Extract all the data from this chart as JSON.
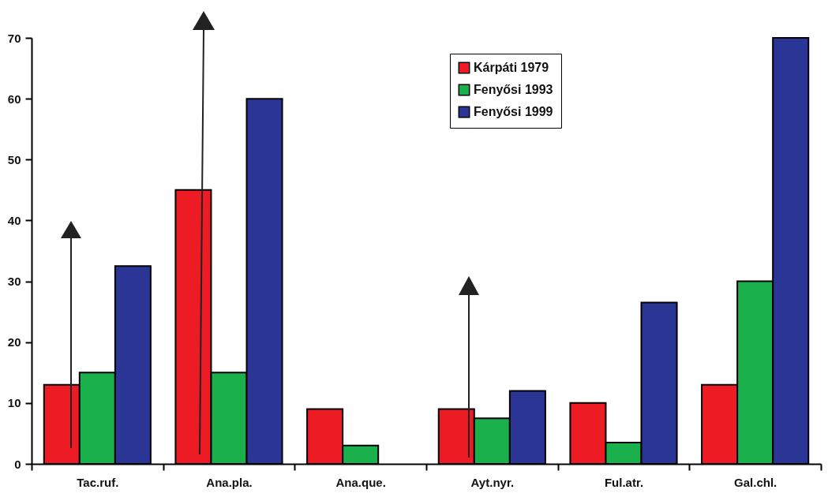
{
  "chart_data": {
    "type": "bar",
    "categories": [
      "Tac.ruf.",
      "Ana.pla.",
      "Ana.que.",
      "Ayt.nyr.",
      "Ful.atr.",
      "Gal.chl."
    ],
    "series": [
      {
        "name": "Kárpáti 1979",
        "color": "#ed1c24",
        "values": [
          13,
          45,
          9,
          9,
          10,
          13
        ]
      },
      {
        "name": "Fenyősi 1993",
        "color": "#1ab04b",
        "values": [
          15,
          15,
          3,
          7.5,
          3.5,
          30
        ]
      },
      {
        "name": "Fenyősi 1999",
        "color": "#2b3595",
        "values": [
          32.5,
          60,
          null,
          12,
          26.5,
          70
        ]
      }
    ],
    "ylim": [
      0,
      70
    ],
    "yticks": [
      0,
      10,
      20,
      30,
      40,
      50,
      60,
      70
    ],
    "grid": false,
    "legend": "top"
  }
}
